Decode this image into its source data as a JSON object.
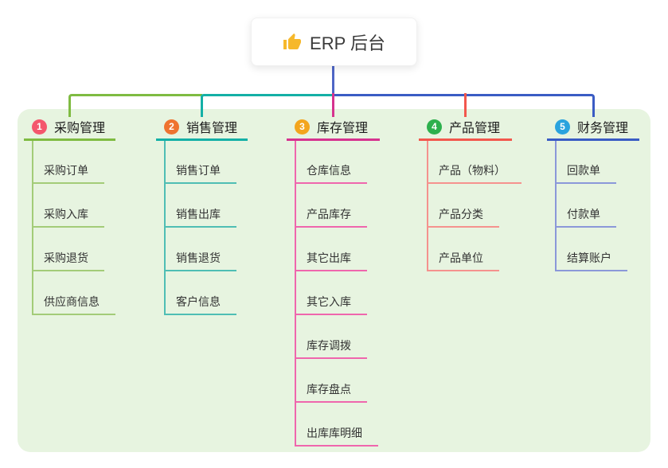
{
  "root": {
    "icon": "thumbs-up",
    "label": "ERP 后台"
  },
  "colors": {
    "root_stem": "#4f66c6",
    "container_bg": "#e7f4e0"
  },
  "branches": [
    {
      "number": "1",
      "label": "采购管理",
      "badge_color": "#f4576d",
      "line_color": "#7fbb42",
      "child_line_color": "#a3cc78",
      "children": [
        "采购订单",
        "采购入库",
        "采购退货",
        "供应商信息"
      ]
    },
    {
      "number": "2",
      "label": "销售管理",
      "badge_color": "#ef7330",
      "line_color": "#14b0a6",
      "child_line_color": "#4fbeb4",
      "children": [
        "销售订单",
        "销售出库",
        "销售退货",
        "客户信息"
      ]
    },
    {
      "number": "3",
      "label": "库存管理",
      "badge_color": "#f3a51d",
      "line_color": "#d6338f",
      "child_line_color": "#ef66ad",
      "children": [
        "仓库信息",
        "产品库存",
        "其它出库",
        "其它入库",
        "库存调拨",
        "库存盘点",
        "出库库明细"
      ]
    },
    {
      "number": "4",
      "label": "产品管理",
      "badge_color": "#2db04d",
      "line_color": "#f2574d",
      "child_line_color": "#f5928e",
      "children": [
        "产品（物料）",
        "产品分类",
        "产品单位"
      ]
    },
    {
      "number": "5",
      "label": "财务管理",
      "badge_color": "#2aa3de",
      "line_color": "#3a5cc4",
      "child_line_color": "#8b98d9",
      "children": [
        "回款单",
        "付款单",
        "结算账户"
      ]
    }
  ]
}
